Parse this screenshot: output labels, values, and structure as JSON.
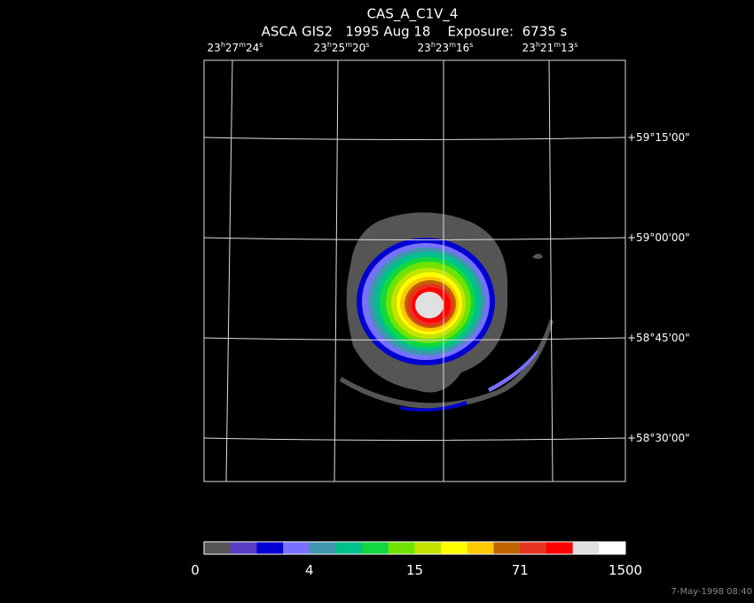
{
  "header": {
    "title": "CAS_A_C1V_4",
    "subtitle": "ASCA GIS2   1995 Aug 18    Exposure:  6735 s"
  },
  "ra_labels": [
    [
      "23",
      "h",
      "27",
      "m",
      "24",
      "s"
    ],
    [
      "23",
      "h",
      "25",
      "m",
      "20",
      "s"
    ],
    [
      "23",
      "h",
      "23",
      "m",
      "16",
      "s"
    ],
    [
      "23",
      "h",
      "21",
      "m",
      "13",
      "s"
    ]
  ],
  "dec_labels": [
    "+59°15'00\"",
    "+59°00'00\"",
    "+58°45'00\"",
    "+58°30'00\""
  ],
  "colorbar": {
    "colors": [
      "#555555",
      "#5a3ec4",
      "#0000d2",
      "#7870ff",
      "#3f96ae",
      "#00c08c",
      "#10d840",
      "#70e400",
      "#c4e400",
      "#ffff00",
      "#ffc800",
      "#c06400",
      "#e6321e",
      "#ff0000",
      "#e0e0e0",
      "#ffffff"
    ],
    "labels": [
      "0",
      "4",
      "15",
      "71",
      "1500"
    ]
  },
  "footer": "7-May-1998 08:40"
}
